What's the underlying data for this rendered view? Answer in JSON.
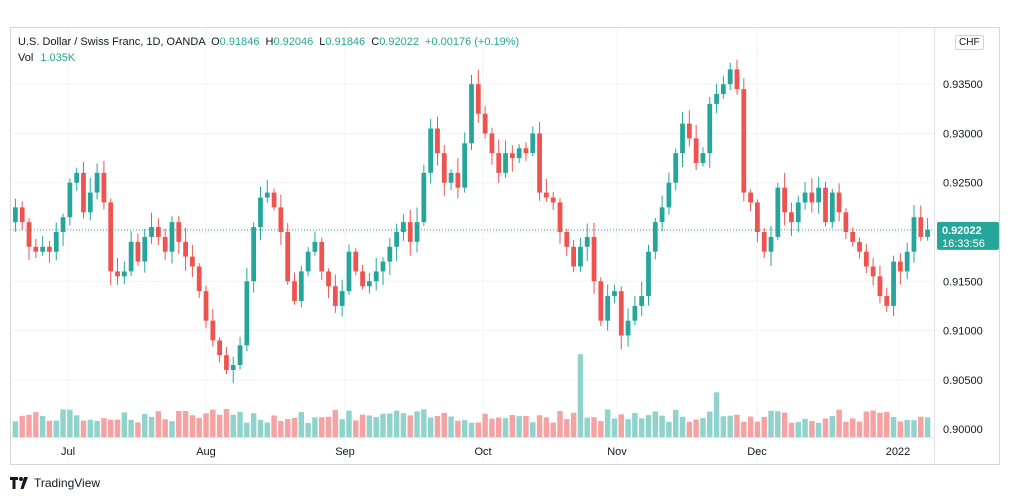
{
  "legend": {
    "symbol": "U.S. Dollar / Swiss Franc, 1D, OANDA",
    "o_label": "O",
    "o_value": "0.91846",
    "h_label": "H",
    "h_value": "0.92046",
    "l_label": "L",
    "l_value": "0.91846",
    "c_label": "C",
    "c_value": "0.92022",
    "change": "+0.00176 (+0.19%)",
    "vol_label": "Vol",
    "vol_value": "1.035K"
  },
  "currency_button": "CHF",
  "price_tag": {
    "price": "0.92022",
    "countdown": "16:33:56"
  },
  "footer": {
    "brand": "TradingView"
  },
  "colors": {
    "up": "#26a69a",
    "down": "#ef5350",
    "vol_up": "#8fd3cc",
    "vol_down": "#f4a3a2",
    "tag": "#26a69a"
  },
  "chart_data": {
    "type": "candlestick",
    "y_ticks": [
      "0.93500",
      "0.93000",
      "0.92500",
      "0.92000",
      "0.91500",
      "0.91000",
      "0.90500",
      "0.90000"
    ],
    "ylim": [
      0.8993,
      0.9407
    ],
    "x_ticks": [
      "Jul",
      "Aug",
      "Sep",
      "Oct",
      "Nov",
      "Dec",
      "2022"
    ],
    "last_price": 0.92022,
    "closes": [
      0.9225,
      0.921,
      0.9185,
      0.918,
      0.9185,
      0.918,
      0.92,
      0.9215,
      0.925,
      0.926,
      0.922,
      0.924,
      0.926,
      0.923,
      0.916,
      0.9155,
      0.916,
      0.919,
      0.917,
      0.9195,
      0.9205,
      0.9195,
      0.918,
      0.921,
      0.919,
      0.9175,
      0.9165,
      0.914,
      0.911,
      0.909,
      0.9075,
      0.906,
      0.9065,
      0.9085,
      0.915,
      0.9205,
      0.9235,
      0.924,
      0.9225,
      0.92,
      0.915,
      0.913,
      0.916,
      0.918,
      0.919,
      0.916,
      0.9145,
      0.9125,
      0.914,
      0.918,
      0.916,
      0.9145,
      0.915,
      0.916,
      0.917,
      0.9185,
      0.92,
      0.921,
      0.919,
      0.921,
      0.926,
      0.9305,
      0.928,
      0.925,
      0.926,
      0.9245,
      0.929,
      0.935,
      0.932,
      0.93,
      0.928,
      0.926,
      0.928,
      0.9275,
      0.9285,
      0.928,
      0.93,
      0.924,
      0.9235,
      0.923,
      0.92,
      0.9185,
      0.9165,
      0.9185,
      0.9195,
      0.915,
      0.911,
      0.9135,
      0.914,
      0.9095,
      0.911,
      0.9125,
      0.9135,
      0.918,
      0.921,
      0.9225,
      0.925,
      0.928,
      0.931,
      0.9295,
      0.927,
      0.928,
      0.933,
      0.934,
      0.935,
      0.9365,
      0.9345,
      0.924,
      0.923,
      0.92,
      0.918,
      0.9195,
      0.9245,
      0.922,
      0.921,
      0.923,
      0.924,
      0.923,
      0.9245,
      0.921,
      0.924,
      0.922,
      0.92,
      0.919,
      0.918,
      0.9165,
      0.9155,
      0.9135,
      0.9125,
      0.917,
      0.916,
      0.918,
      0.9215,
      0.9195,
      0.92022
    ]
  }
}
